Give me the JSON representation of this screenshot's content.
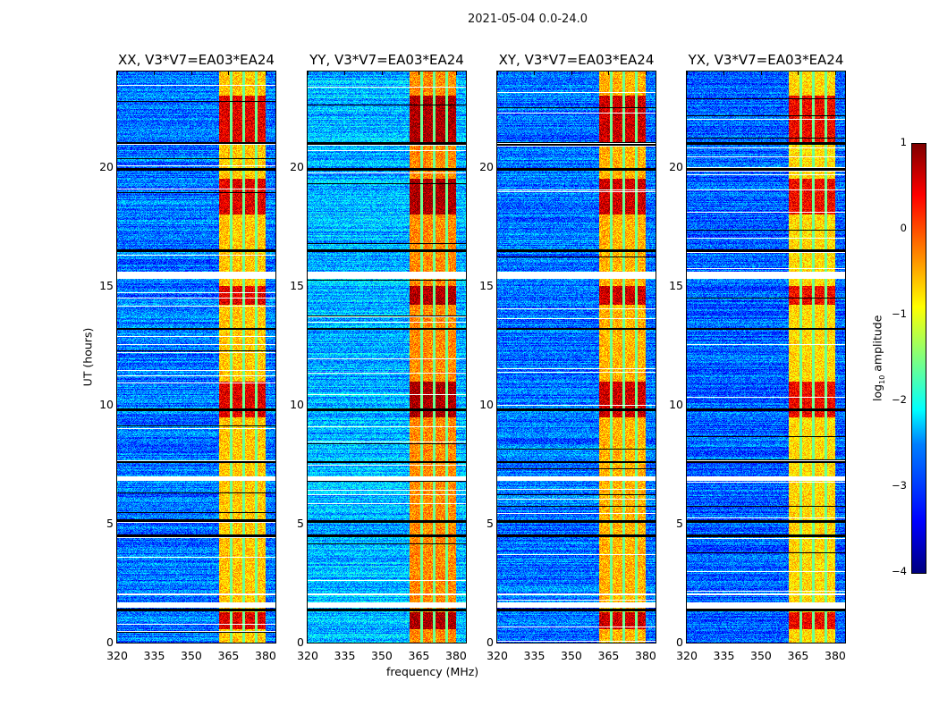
{
  "chart_data": {
    "type": "heatmap",
    "title": "2021-05-04 0.0-24.0",
    "xlabel": "frequency (MHz)",
    "ylabel": "UT (hours)",
    "xlim": [
      320,
      384
    ],
    "ylim": [
      0,
      24
    ],
    "xticks": [
      "320",
      "335",
      "350",
      "365",
      "380"
    ],
    "xtick_values": [
      320,
      335,
      350,
      365,
      380
    ],
    "yticks": [
      "0",
      "5",
      "10",
      "15",
      "20"
    ],
    "ytick_values": [
      0,
      5,
      10,
      15,
      20
    ],
    "panels": [
      {
        "title": "XX, V3*V7=EA03*EA24",
        "band_level": -0.6,
        "background_level": -2.8
      },
      {
        "title": "YY, V3*V7=EA03*EA24",
        "band_level": -0.3,
        "background_level": -2.5
      },
      {
        "title": "XY, V3*V7=EA03*EA24",
        "band_level": -0.5,
        "background_level": -2.8
      },
      {
        "title": "YX, V3*V7=EA03*EA24",
        "band_level": -0.7,
        "background_level": -2.9
      }
    ],
    "features": {
      "rfi_band_mhz": [
        361,
        380
      ],
      "channel_gaps_mhz": [
        366,
        371,
        376
      ],
      "strong_rfi_hours": [
        [
          0.6,
          1.3
        ],
        [
          9.5,
          11
        ],
        [
          14.2,
          15.0
        ],
        [
          18.0,
          19.5
        ],
        [
          21.0,
          23.0
        ]
      ],
      "flagged_white_hours": [
        [
          15.3,
          15.6
        ],
        [
          1.5,
          1.7
        ],
        [
          6.8,
          7.0
        ],
        [
          2.0,
          2.1
        ]
      ],
      "black_line_hours": [
        1.4,
        4.5,
        5.1,
        7.6,
        9.8,
        13.2,
        16.5,
        19.9,
        21.0
      ]
    },
    "colorbar": {
      "label": "log10 amplitude",
      "label_main": "log",
      "label_sub": "10",
      "label_rest": " amplitude",
      "range": [
        -4,
        1
      ],
      "ticks": [
        "1",
        "0",
        "−1",
        "−2",
        "−3",
        "−4"
      ],
      "colormap": "jet"
    }
  }
}
